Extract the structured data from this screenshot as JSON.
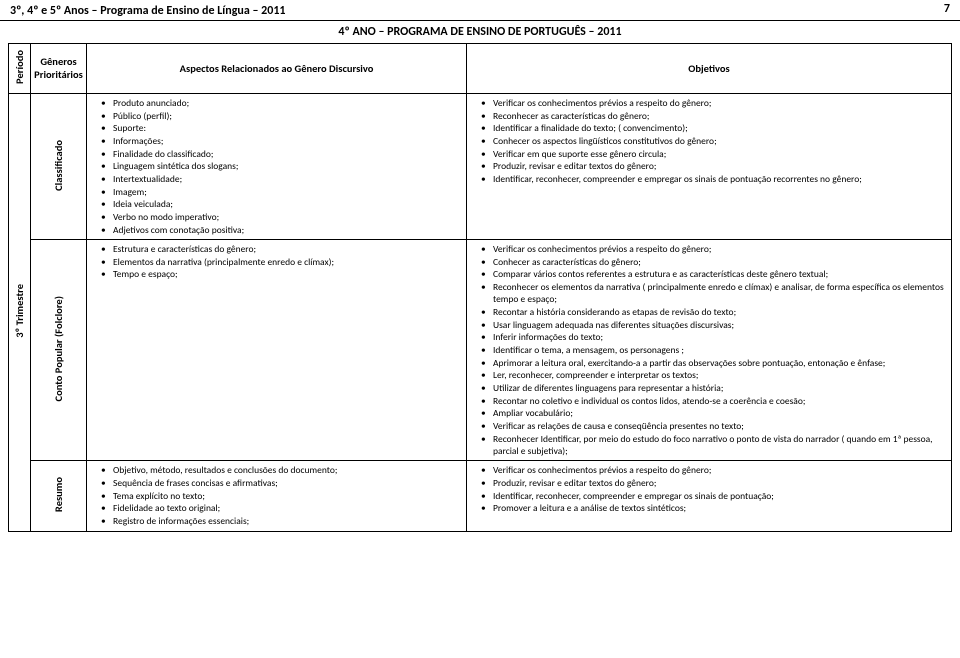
{
  "header": {
    "doc_title": "3º, 4º e 5º Anos – Programa de Ensino de Língua – 2011",
    "page_number": "7",
    "year_title": "4º ANO – PROGRAMA DE ENSINO DE PORTUGUÊS – 2011"
  },
  "columns": {
    "periodo": "Período",
    "generos": "Gêneros Prioritários",
    "aspectos": "Aspectos Relacionados ao Gênero Discursivo",
    "objetivos": "Objetivos"
  },
  "period_label": "3º Trimestre",
  "rows": [
    {
      "genero": "Classificado",
      "aspectos": [
        "Produto anunciado;",
        "Público (perfil);",
        "Suporte:",
        "Informações;",
        "Finalidade do classificado;",
        "Linguagem sintética dos slogans;",
        "Intertextualidade;",
        "Imagem;",
        "Ideia veiculada;",
        "Verbo no modo imperativo;",
        "Adjetivos com conotação positiva;"
      ],
      "objetivos": [
        "Verificar os conhecimentos prévios a respeito do gênero;",
        "Reconhecer as características do gênero;",
        "Identificar a finalidade do texto; ( convencimento);",
        "Conhecer os aspectos lingüísticos constitutivos do gênero;",
        "Verificar em que suporte esse gênero circula;",
        "Produzir, revisar e editar textos do gênero;",
        "Identificar, reconhecer, compreender e empregar os sinais de pontuação recorrentes no gênero;"
      ]
    },
    {
      "genero": "Conto Popular (Folclore)",
      "aspectos": [
        "Estrutura e características do gênero;",
        "Elementos da narrativa (principalmente enredo e clímax);",
        "Tempo e espaço;"
      ],
      "objetivos": [
        "Verificar os conhecimentos prévios a respeito do gênero;",
        "Conhecer as características do gênero;",
        "Comparar vários contos referentes a estrutura e as características deste gênero textual;",
        "Reconhecer os elementos da narrativa ( principalmente enredo e clímax) e analisar, de forma específica os elementos tempo e espaço;",
        "Recontar a história considerando as etapas de revisão do texto;",
        "Usar linguagem adequada nas diferentes situações discursivas;",
        "Inferir informações do texto;",
        "Identificar o tema, a mensagem, os personagens ;",
        "Aprimorar a leitura oral, exercitando-a a partir das observações sobre  pontuação, entonação e  ênfase;",
        "Ler, reconhecer, compreender e interpretar os textos;",
        "Utilizar de diferentes linguagens para representar a história;",
        "Recontar no coletivo e individual os contos lidos, atendo-se a coerência e coesão;",
        "Ampliar vocabulário;",
        "Verificar as relações de causa e conseqüência presentes no texto;",
        "Reconhecer Identificar, por meio do estudo do foco narrativo o ponto de vista do narrador ( quando em 1ª pessoa, parcial e subjetiva);"
      ]
    },
    {
      "genero": "Resumo",
      "aspectos": [
        "Objetivo, método, resultados e conclusões do documento;",
        "Sequência de frases concisas e afirmativas;",
        "Tema explícito no texto;",
        "Fidelidade ao texto original;",
        "Registro de informações essenciais;"
      ],
      "objetivos": [
        "Verificar os conhecimentos prévios a respeito do gênero;",
        "Produzir, revisar e editar textos do gênero;",
        "Identificar, reconhecer, compreender e empregar os sinais de pontuação;",
        "Promover a leitura e a análise de textos sintéticos;"
      ]
    }
  ]
}
